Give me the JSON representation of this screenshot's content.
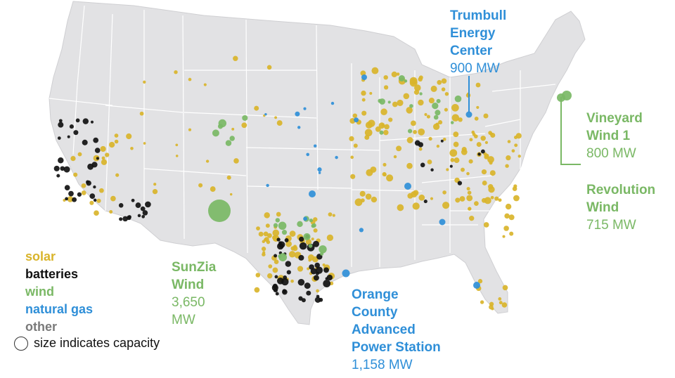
{
  "colors": {
    "land": "#e2e2e4",
    "border": "#ffffff",
    "solar": "#d9b42a",
    "batteries": "#111111",
    "wind": "#7ab865",
    "natural_gas": "#2f8fd8",
    "other": "#7a7a7a"
  },
  "legend": {
    "solar": "solar",
    "batteries": "batteries",
    "wind": "wind",
    "natural_gas": "natural gas",
    "other": "other",
    "size_note": "size indicates capacity"
  },
  "annotations": {
    "trumbull": {
      "name_lines": [
        "Trumbull",
        "Energy",
        "Center"
      ],
      "capacity": "900 MW"
    },
    "vineyard": {
      "name_lines": [
        "Vineyard",
        "Wind 1"
      ],
      "capacity": "800 MW"
    },
    "revolution": {
      "name_lines": [
        "Revolution",
        "Wind"
      ],
      "capacity": "715 MW"
    },
    "sunzia": {
      "name_lines": [
        "SunZia",
        "Wind"
      ],
      "capacity_lines": [
        "3,650",
        "MW"
      ]
    },
    "orange": {
      "name_lines": [
        "Orange",
        "County",
        "Advanced",
        "Power Station"
      ],
      "capacity": "1,158 MW"
    }
  }
}
